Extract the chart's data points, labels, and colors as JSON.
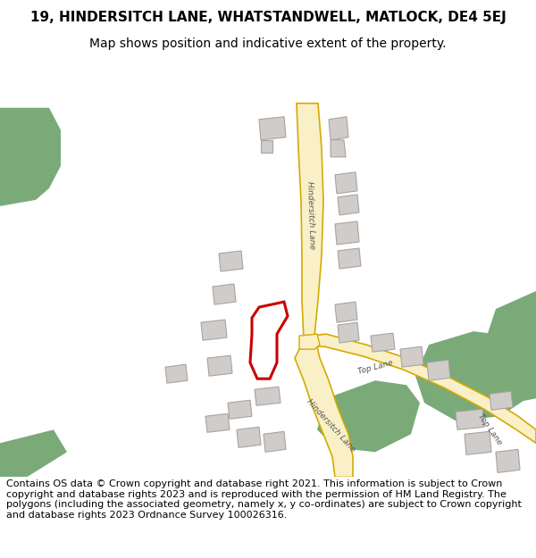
{
  "title_line1": "19, HINDERSITCH LANE, WHATSTANDWELL, MATLOCK, DE4 5EJ",
  "title_line2": "Map shows position and indicative extent of the property.",
  "footer_text": "Contains OS data © Crown copyright and database right 2021. This information is subject to Crown copyright and database rights 2023 and is reproduced with the permission of HM Land Registry. The polygons (including the associated geometry, namely x, y co-ordinates) are subject to Crown copyright and database rights 2023 Ordnance Survey 100026316.",
  "title_fontsize": 11,
  "subtitle_fontsize": 10,
  "footer_fontsize": 8.0,
  "road_fill": "#faf0c8",
  "road_outline": "#d4aa00",
  "building_fill": "#d0ccca",
  "building_outline": "#a8a4a2",
  "green_fill": "#7aaa78",
  "plot_color": "#cc0000",
  "map_bg": "#ffffff",
  "white": "#ffffff",
  "text_color": "#333333",
  "label_color": "#555555"
}
